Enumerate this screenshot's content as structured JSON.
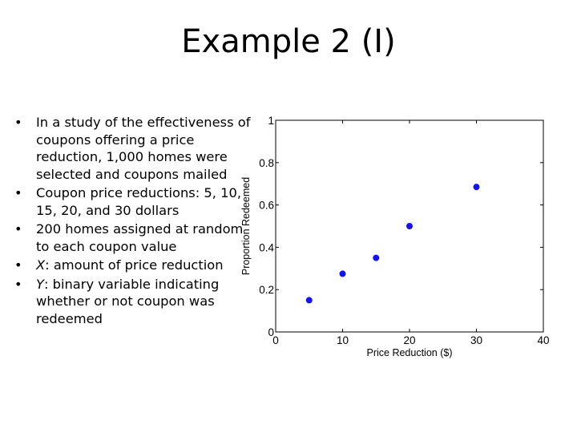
{
  "slide": {
    "title": "Example 2 (I)",
    "bullets": [
      {
        "marker": "•",
        "segments": [
          {
            "text": "In a study of the effectiveness of coupons offering a price reduction, 1,000 homes were selected and coupons mailed",
            "italic": false
          }
        ]
      },
      {
        "marker": "•",
        "segments": [
          {
            "text": "Coupon price reductions: 5, 10, 15, 20, and 30 dollars",
            "italic": false
          }
        ]
      },
      {
        "marker": "•",
        "segments": [
          {
            "text": "200 homes assigned at random to each coupon value",
            "italic": false
          }
        ]
      },
      {
        "marker": "•",
        "segments": [
          {
            "text": "X",
            "italic": true
          },
          {
            "text": ": amount of price reduction",
            "italic": false
          }
        ]
      },
      {
        "marker": "•",
        "segments": [
          {
            "text": "Y",
            "italic": true
          },
          {
            "text": ": binary variable indicating whether or not coupon was redeemed",
            "italic": false
          }
        ]
      }
    ]
  },
  "chart_data": {
    "type": "scatter",
    "title": "",
    "xlabel": "Price Reduction ($)",
    "ylabel": "Proportion Redeemed",
    "xlim": [
      0,
      40
    ],
    "ylim": [
      0,
      1
    ],
    "xticks": [
      0,
      10,
      20,
      30,
      40
    ],
    "yticks": [
      0,
      0.2,
      0.4,
      0.6,
      0.8,
      1
    ],
    "xtick_labels": [
      "0",
      "10",
      "20",
      "30",
      "40"
    ],
    "ytick_labels": [
      "0",
      "0.2",
      "0.4",
      "0.6",
      "0.8",
      "1"
    ],
    "grid": false,
    "box": true,
    "marker_color": "#1414e6",
    "series": [
      {
        "x": [
          5,
          10,
          15,
          20,
          30
        ],
        "y": [
          0.15,
          0.275,
          0.35,
          0.5,
          0.685
        ]
      }
    ]
  }
}
